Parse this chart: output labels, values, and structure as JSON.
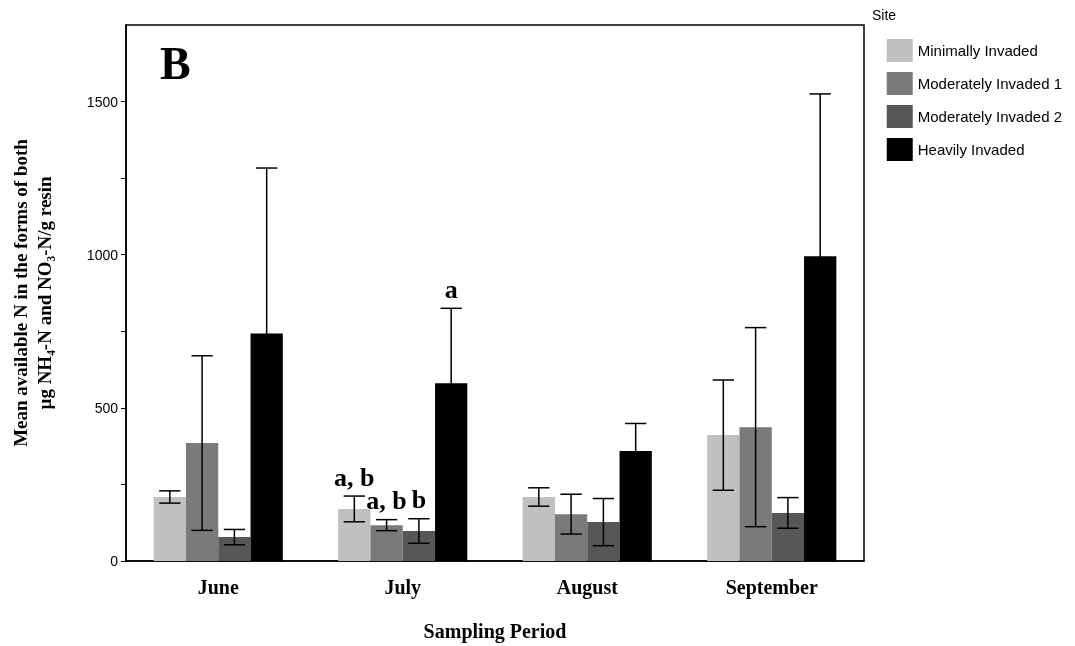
{
  "chart_data": {
    "type": "bar",
    "xlabel": "Sampling Period",
    "ylabel": "Mean available N in the forms of both\nµg NH₄-N and NO₃-N/g resin",
    "categories": [
      "June",
      "July",
      "August",
      "September"
    ],
    "series": [
      {
        "name": "Minimally Invaded",
        "color": "#c0c0c0",
        "values": [
          209,
          170,
          209,
          411
        ],
        "errors": [
          20,
          42,
          30,
          180
        ],
        "value_labels": [
          null,
          "a, b",
          null,
          null
        ]
      },
      {
        "name": "Moderately Invaded 1",
        "color": "#7a7a7a",
        "values": [
          385,
          117,
          153,
          437
        ],
        "errors": [
          285,
          18,
          65,
          325
        ],
        "value_labels": [
          null,
          "a, b",
          null,
          null
        ]
      },
      {
        "name": "Moderately Invaded 2",
        "color": "#575757",
        "values": [
          78,
          98,
          127,
          157
        ],
        "errors": [
          25,
          40,
          77,
          50
        ],
        "value_labels": [
          null,
          "b",
          null,
          null
        ]
      },
      {
        "name": "Heavily Invaded",
        "color": "#000000",
        "values": [
          743,
          580,
          359,
          995
        ],
        "errors": [
          540,
          245,
          90,
          530
        ],
        "value_labels": [
          null,
          "a",
          null,
          null
        ]
      }
    ],
    "ylim": [
      0,
      1750
    ],
    "yticks": [
      0,
      {
        "value": 250,
        "label": null
      },
      500,
      {
        "value": 750,
        "label": null
      },
      1000,
      {
        "value": 1250,
        "label": null
      },
      1500
    ],
    "legend": "right",
    "legend_title": "Site",
    "grid": false,
    "annotations": [
      "B"
    ]
  }
}
